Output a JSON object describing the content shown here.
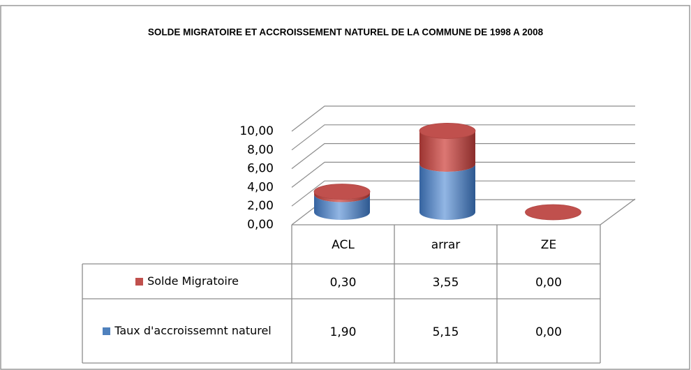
{
  "chart_data": {
    "type": "bar3d_stacked_cylinder",
    "title": "SOLDE MIGRATOIRE ET ACCROISSEMENT NATUREL DE LA COMMUNE DE 1998 A 2008",
    "categories": [
      "ACL",
      "arrar",
      "ZE"
    ],
    "series": [
      {
        "name": "Solde Migratoire",
        "color": "#c0504d",
        "values": [
          0.3,
          3.55,
          0.0
        ],
        "value_labels": [
          "0,30",
          "3,55",
          "0,00"
        ]
      },
      {
        "name": "Taux d'accroissemnt naturel",
        "color": "#4f81bd",
        "values": [
          1.9,
          5.15,
          0.0
        ],
        "value_labels": [
          "1,90",
          "5,15",
          "0,00"
        ]
      }
    ],
    "ylim": [
      0,
      10
    ],
    "yticks": [
      {
        "value": 0,
        "label": "0,00"
      },
      {
        "value": 2,
        "label": "2,00"
      },
      {
        "value": 4,
        "label": "4,00"
      },
      {
        "value": 6,
        "label": "6,00"
      },
      {
        "value": 8,
        "label": "8,00"
      },
      {
        "value": 10,
        "label": "10,00"
      }
    ],
    "grid": true,
    "stacked": true,
    "data_table": true
  }
}
